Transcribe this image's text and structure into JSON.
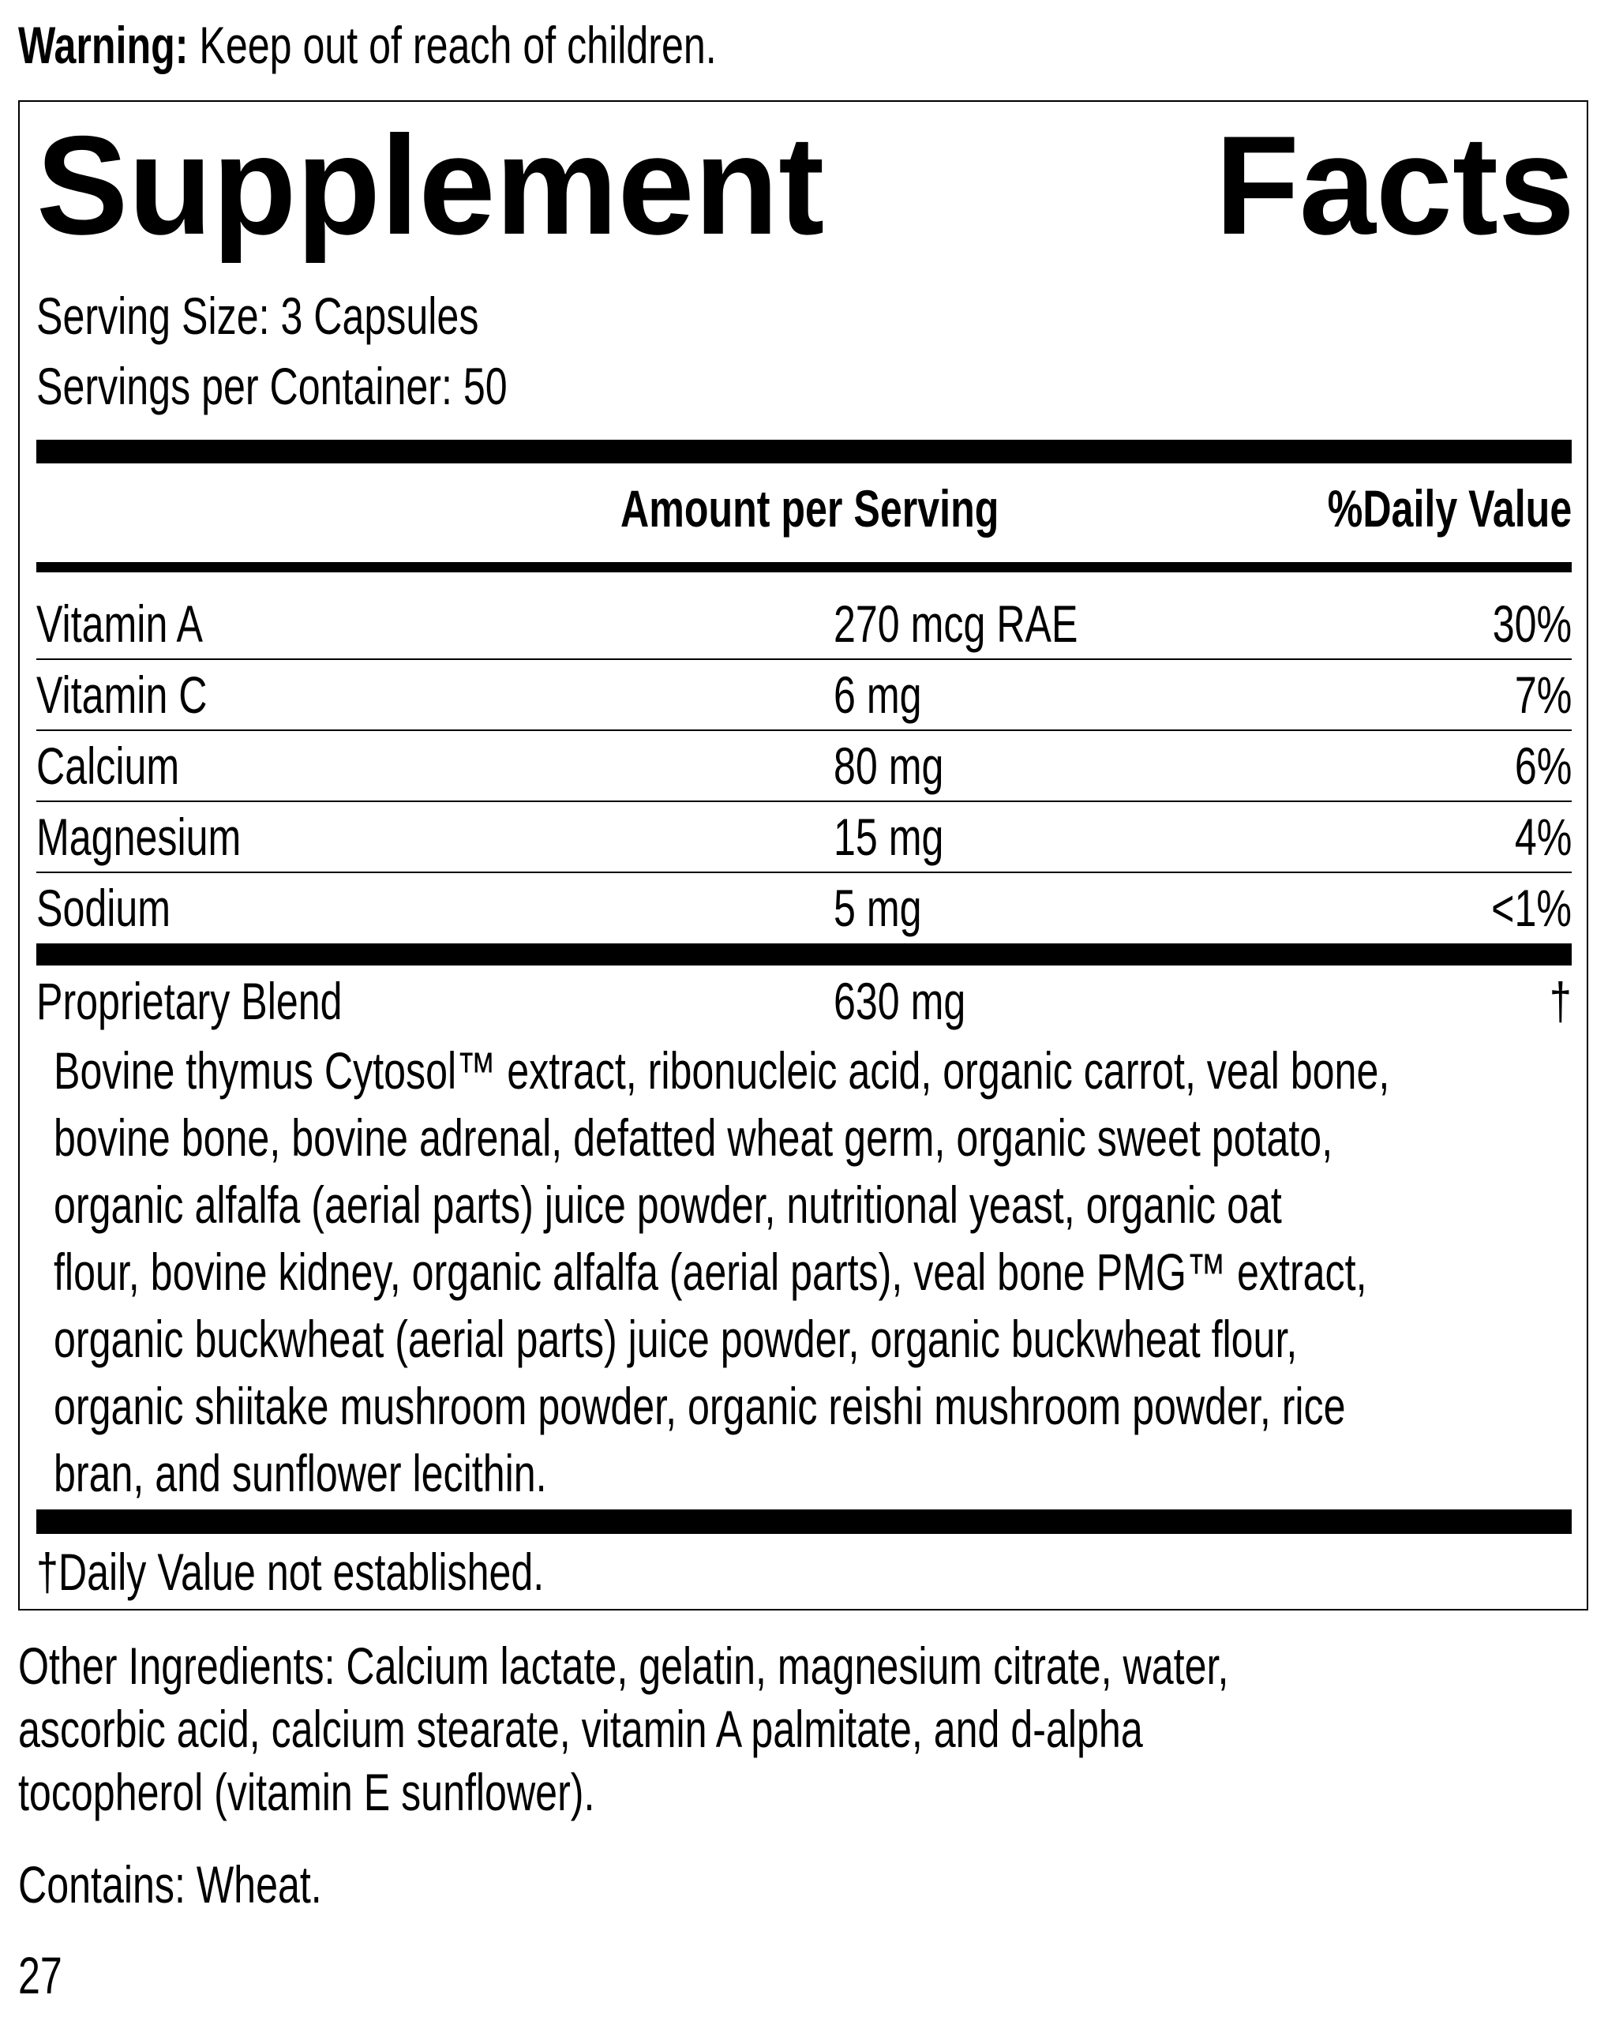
{
  "warning": {
    "label": "Warning:",
    "text": " Keep out of reach of children."
  },
  "facts": {
    "title_left": "Supplement",
    "title_right": "Facts",
    "serving_size": "Serving Size: 3 Capsules",
    "servings_per_container": "Servings per Container: 50",
    "header": {
      "amount": "Amount per Serving",
      "daily_value": "%Daily Value"
    },
    "rows": [
      {
        "name": "Vitamin A",
        "amount": "270 mcg RAE",
        "dv": "30%"
      },
      {
        "name": "Vitamin C",
        "amount": "6 mg",
        "dv": "7%"
      },
      {
        "name": "Calcium",
        "amount": "80 mg",
        "dv": "6%"
      },
      {
        "name": "Magnesium",
        "amount": "15 mg",
        "dv": "4%"
      },
      {
        "name": "Sodium",
        "amount": "5 mg",
        "dv": "<1%"
      }
    ],
    "blend": {
      "name": "Proprietary Blend",
      "amount": "630 mg",
      "dv": "†",
      "lines": [
        "Bovine thymus Cytosol™ extract, ribonucleic acid, organic carrot, veal bone,",
        "bovine bone, bovine adrenal, defatted wheat germ, organic sweet potato,",
        "organic alfalfa (aerial parts) juice powder, nutritional yeast, organic oat",
        "flour, bovine kidney, organic alfalfa (aerial parts), veal bone PMG™ extract,",
        "organic buckwheat (aerial parts) juice powder, organic buckwheat flour,",
        "organic shiitake mushroom powder, organic reishi mushroom powder, rice",
        "bran, and sunflower lecithin."
      ]
    },
    "footnote": "†Daily Value not established."
  },
  "other_ingredients": [
    "Other Ingredients: Calcium lactate, gelatin, magnesium citrate, water,",
    "ascorbic acid, calcium stearate, vitamin A palmitate, and d-alpha",
    "tocopherol (vitamin E sunflower)."
  ],
  "contains": "Contains: Wheat.",
  "code": "27"
}
